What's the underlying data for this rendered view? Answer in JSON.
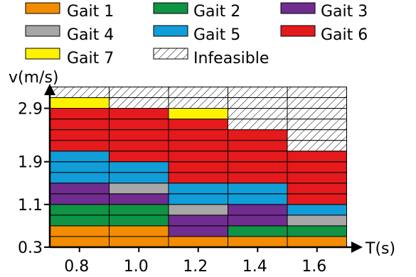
{
  "chart_data": {
    "type": "heatmap",
    "xlabel": "T(s)",
    "ylabel": "v(m/s)",
    "x_categories": [
      "0.8",
      "1.0",
      "1.2",
      "1.4",
      "1.6"
    ],
    "y_ticks": [
      0.3,
      1.1,
      1.9,
      2.9
    ],
    "y_tick_labels": [
      "0.3",
      "1.1",
      "1.9",
      "2.9"
    ],
    "ylim": [
      0.3,
      3.0
    ],
    "cell_height_mps": 0.2,
    "legend_position": "top",
    "legend": [
      {
        "key": "g1",
        "label": "Gait 1",
        "color": "#F28C00"
      },
      {
        "key": "g2",
        "label": "Gait 2",
        "color": "#0E9444"
      },
      {
        "key": "g3",
        "label": "Gait 3",
        "color": "#702C8F"
      },
      {
        "key": "g4",
        "label": "Gait 4",
        "color": "#A7A7A7"
      },
      {
        "key": "g5",
        "label": "Gait 5",
        "color": "#109DD8"
      },
      {
        "key": "g6",
        "label": "Gait 6",
        "color": "#E41A1C"
      },
      {
        "key": "g7",
        "label": "Gait 7",
        "color": "#FFF200"
      },
      {
        "key": "inf",
        "label": "Infeasible",
        "color": "hatch"
      }
    ],
    "columns": [
      {
        "T": "0.8",
        "cells_from_v0.3": [
          "g1",
          "g1",
          "g2",
          "g2",
          "g3",
          "g3",
          "g5",
          "g5",
          "g5",
          "g6",
          "g6",
          "g6",
          "g6",
          "g7",
          "inf"
        ]
      },
      {
        "T": "1.0",
        "cells_from_v0.3": [
          "g1",
          "g1",
          "g2",
          "g2",
          "g3",
          "g4",
          "g5",
          "g5",
          "g6",
          "g6",
          "g6",
          "g6",
          "g6",
          "inf",
          "inf"
        ]
      },
      {
        "T": "1.2",
        "cells_from_v0.3": [
          "g1",
          "g3",
          "g3",
          "g4",
          "g5",
          "g5",
          "g6",
          "g6",
          "g6",
          "g6",
          "g6",
          "g6",
          "g7",
          "inf",
          "inf"
        ]
      },
      {
        "T": "1.4",
        "cells_from_v0.3": [
          "g1",
          "g2",
          "g3",
          "g3",
          "g5",
          "g5",
          "g6",
          "g6",
          "g6",
          "g6",
          "g6",
          "inf",
          "inf",
          "inf",
          "inf"
        ]
      },
      {
        "T": "1.6",
        "cells_from_v0.3": [
          "g1",
          "g2",
          "g4",
          "g5",
          "g6",
          "g6",
          "g6",
          "g6",
          "g6",
          "inf",
          "inf",
          "inf",
          "inf",
          "inf",
          "inf"
        ]
      }
    ]
  }
}
